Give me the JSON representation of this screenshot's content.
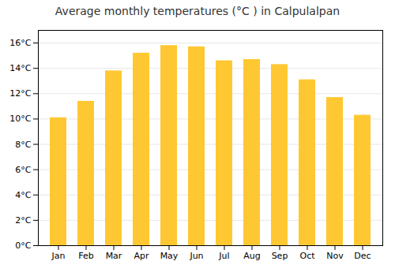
{
  "chart_data": {
    "type": "bar",
    "title": "Average monthly temperatures (°C ) in Calpulalpan",
    "categories": [
      "Jan",
      "Feb",
      "Mar",
      "Apr",
      "May",
      "Jun",
      "Jul",
      "Aug",
      "Sep",
      "Oct",
      "Nov",
      "Dec"
    ],
    "values": [
      10.1,
      11.4,
      13.8,
      15.2,
      15.8,
      15.7,
      14.6,
      14.7,
      14.3,
      13.1,
      11.7,
      10.3
    ],
    "color": "#FFC832",
    "ylim": [
      0,
      17
    ],
    "yticks": [
      {
        "value": 0,
        "label": "0°C"
      },
      {
        "value": 2,
        "label": "2°C"
      },
      {
        "value": 4,
        "label": "4°C"
      },
      {
        "value": 6,
        "label": "6°C"
      },
      {
        "value": 8,
        "label": "8°C"
      },
      {
        "value": 10,
        "label": "10°C"
      },
      {
        "value": 12,
        "label": "12°C"
      },
      {
        "value": 14,
        "label": "14°C"
      },
      {
        "value": 16,
        "label": "16°C"
      }
    ],
    "grid": true
  }
}
